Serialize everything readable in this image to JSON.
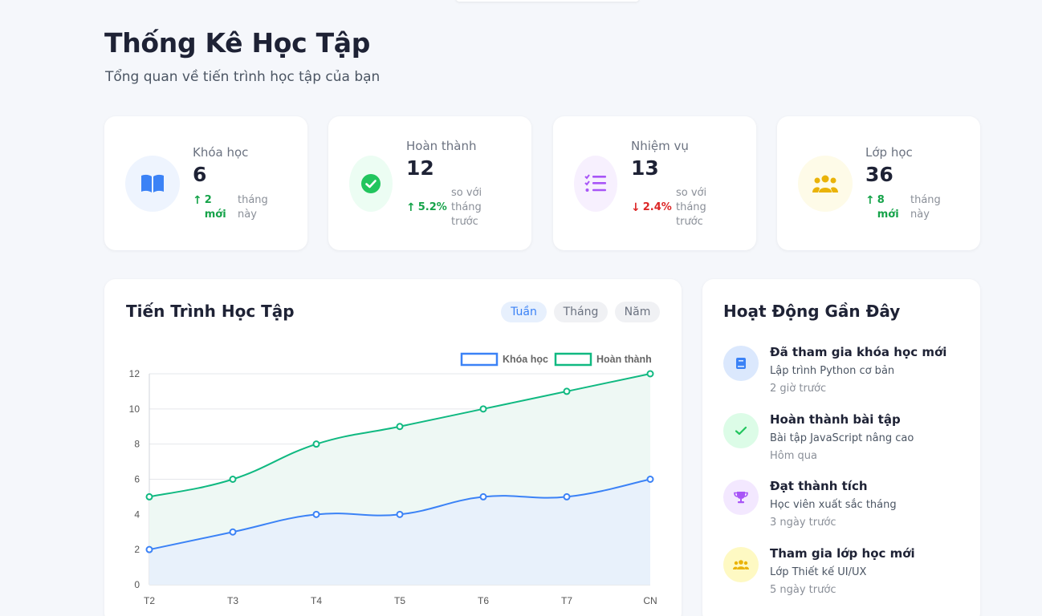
{
  "header": {
    "title": "Thống Kê Học Tập",
    "subtitle": "Tổng quan về tiến trình học tập của bạn"
  },
  "stats": [
    {
      "label": "Khóa học",
      "value": "6",
      "trend": "up",
      "delta_line1": "2",
      "delta_line2": "mới",
      "note_line1": "tháng",
      "note_line2": "này",
      "color": "#3b82f6",
      "bg": "#eef4fe",
      "icon": "book-icon"
    },
    {
      "label": "Hoàn thành",
      "value": "12",
      "trend": "up",
      "delta_line1": "5.2%",
      "delta_line2": "",
      "note_line1": "so với",
      "note_line2": "tháng",
      "note_line3": "trước",
      "color": "#22c55e",
      "bg": "#ecfdf3",
      "icon": "check-circle-icon"
    },
    {
      "label": "Nhiệm vụ",
      "value": "13",
      "trend": "down",
      "delta_line1": "2.4%",
      "delta_line2": "",
      "note_line1": "so với",
      "note_line2": "tháng",
      "note_line3": "trước",
      "color": "#a855f7",
      "bg": "#f7f0fe",
      "icon": "task-list-icon"
    },
    {
      "label": "Lớp học",
      "value": "36",
      "trend": "up",
      "delta_line1": "8",
      "delta_line2": "mới",
      "note_line1": "tháng",
      "note_line2": "này",
      "color": "#eab308",
      "bg": "#fefbe8",
      "icon": "users-icon"
    }
  ],
  "progress_panel": {
    "title": "Tiến Trình Học Tập",
    "periods": [
      "Tuần",
      "Tháng",
      "Năm"
    ],
    "active_period": "Tuần"
  },
  "chart_data": {
    "type": "line",
    "categories": [
      "T2",
      "T3",
      "T4",
      "T5",
      "T6",
      "T7",
      "CN"
    ],
    "series": [
      {
        "name": "Khóa học",
        "values": [
          2,
          3,
          4,
          4,
          5,
          5,
          6
        ],
        "color": "#3b82f6",
        "fill": "#e8f1fb"
      },
      {
        "name": "Hoàn thành",
        "values": [
          5,
          6,
          8,
          9,
          10,
          11,
          12
        ],
        "color": "#10b981",
        "fill": "#eef8f4"
      }
    ],
    "yticks": [
      0,
      2,
      4,
      6,
      8,
      10,
      12
    ],
    "ylim": [
      0,
      12
    ],
    "grid": true,
    "legend": "top-right",
    "area": true
  },
  "activity_panel": {
    "title": "Hoạt Động Gần Đây",
    "items": [
      {
        "title": "Đã tham gia khóa học mới",
        "desc": "Lập trình Python cơ bản",
        "time": "2 giờ trước",
        "icon": "book-icon",
        "color": "#3b82f6",
        "bg": "#dbe8fd"
      },
      {
        "title": "Hoàn thành bài tập",
        "desc": "Bài tập JavaScript nâng cao",
        "time": "Hôm qua",
        "icon": "check-icon",
        "color": "#22c55e",
        "bg": "#dcfce7"
      },
      {
        "title": "Đạt thành tích",
        "desc": "Học viên xuất sắc tháng",
        "time": "3 ngày trước",
        "icon": "trophy-icon",
        "color": "#a855f7",
        "bg": "#f3e8ff"
      },
      {
        "title": "Tham gia lớp học mới",
        "desc": "Lớp Thiết kế UI/UX",
        "time": "5 ngày trước",
        "icon": "users-icon",
        "color": "#eab308",
        "bg": "#fef9c3"
      }
    ]
  }
}
